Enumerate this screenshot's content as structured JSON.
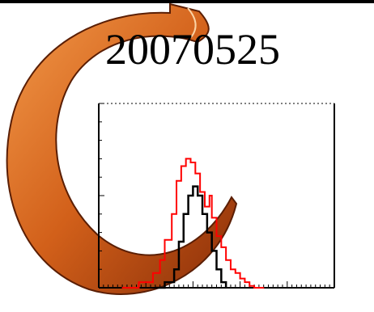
{
  "title": "20070525",
  "colors": {
    "background": "#ffffff",
    "logo_orange": "#d2601a",
    "logo_dark": "#7a2a08",
    "series_red": "#ff0000",
    "series_black": "#000000"
  },
  "logo_icon": "orange-c-logo-icon",
  "chart_data": {
    "type": "line",
    "title": "20070525",
    "xlabel": "",
    "ylabel": "",
    "grid": false,
    "legend": "none",
    "xlim": [
      0,
      100
    ],
    "ylim": [
      0,
      100
    ],
    "series": [
      {
        "color": "#ff0000",
        "x": [
          10,
          14,
          17,
          20,
          23,
          26,
          28,
          31,
          33,
          35,
          37,
          39,
          41,
          43,
          45,
          47,
          48,
          50,
          52,
          54,
          56,
          58,
          60,
          62,
          64,
          66,
          68,
          70
        ],
        "values": [
          0,
          0,
          3,
          3,
          8,
          15,
          26,
          40,
          58,
          66,
          70,
          68,
          62,
          52,
          44,
          50,
          38,
          28,
          22,
          15,
          10,
          8,
          5,
          3,
          1,
          0,
          0,
          0
        ]
      },
      {
        "color": "#000000",
        "x": [
          24,
          28,
          32,
          34,
          36,
          38,
          40,
          42,
          44,
          46,
          48,
          50,
          52,
          54
        ],
        "values": [
          0,
          3,
          10,
          25,
          40,
          50,
          55,
          50,
          40,
          30,
          20,
          10,
          3,
          0
        ]
      }
    ]
  }
}
